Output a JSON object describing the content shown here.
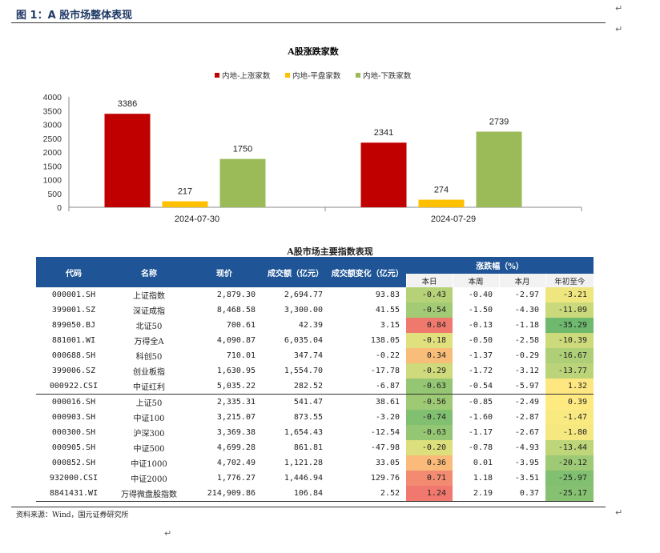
{
  "figure_title": "图 1：A 股市场整体表现",
  "return_mark": "↵",
  "colors": {
    "up": "#c00000",
    "flat": "#ffc000",
    "down": "#9bbb59",
    "header_bg": "#1f5596"
  },
  "chart_data": {
    "type": "bar",
    "title": "A股涨跌家数",
    "categories": [
      "2024-07-30",
      "2024-07-29"
    ],
    "series": [
      {
        "name": "内地-上涨家数",
        "values": [
          3386,
          2341
        ]
      },
      {
        "name": "内地-平盘家数",
        "values": [
          217,
          274
        ]
      },
      {
        "name": "内地-下跌家数",
        "values": [
          1750,
          2739
        ]
      }
    ],
    "ylim": [
      0,
      4000
    ],
    "yticks": [
      0,
      500,
      1000,
      1500,
      2000,
      2500,
      3000,
      3500,
      4000
    ],
    "legend_position": "top-center",
    "xlabel": "",
    "ylabel": ""
  },
  "table": {
    "title": "A股市场主要指数表现",
    "headers": {
      "code": "代码",
      "name": "名称",
      "price": "现价",
      "volume": "成交额（亿元）",
      "volume_change": "成交额变化（亿元）",
      "pct_group": "涨跌幅（%）",
      "pct_cols": [
        "本日",
        "本周",
        "本月",
        "年初至今"
      ]
    },
    "rows": [
      {
        "code": "000001.SH",
        "name": "上证指数",
        "price": "2,879.30",
        "volume": "2,694.77",
        "change": "93.83",
        "pct": [
          -0.43,
          -0.4,
          -2.97,
          -3.21
        ]
      },
      {
        "code": "399001.SZ",
        "name": "深证成指",
        "price": "8,468.58",
        "volume": "3,300.00",
        "change": "41.55",
        "pct": [
          -0.54,
          -1.5,
          -4.3,
          -11.09
        ]
      },
      {
        "code": "899050.BJ",
        "name": "北证50",
        "price": "700.61",
        "volume": "42.39",
        "change": "3.15",
        "pct": [
          0.84,
          -0.13,
          -1.18,
          -35.29
        ]
      },
      {
        "code": "881001.WI",
        "name": "万得全A",
        "price": "4,090.87",
        "volume": "6,035.04",
        "change": "138.05",
        "pct": [
          -0.18,
          -0.5,
          -2.58,
          -10.39
        ]
      },
      {
        "code": "000688.SH",
        "name": "科创50",
        "price": "710.01",
        "volume": "347.74",
        "change": "-0.22",
        "pct": [
          0.34,
          -1.37,
          -0.29,
          -16.67
        ]
      },
      {
        "code": "399006.SZ",
        "name": "创业板指",
        "price": "1,630.95",
        "volume": "1,554.70",
        "change": "-17.78",
        "pct": [
          -0.29,
          -1.72,
          -3.12,
          -13.77
        ]
      },
      {
        "code": "000922.CSI",
        "name": "中证红利",
        "price": "5,035.22",
        "volume": "282.52",
        "change": "-6.87",
        "pct": [
          -0.63,
          -0.54,
          -5.97,
          1.32
        ]
      },
      {
        "code": "000016.SH",
        "name": "上证50",
        "price": "2,335.31",
        "volume": "541.47",
        "change": "38.61",
        "pct": [
          -0.56,
          -0.85,
          -2.49,
          0.39
        ]
      },
      {
        "code": "000903.SH",
        "name": "中证100",
        "price": "3,215.07",
        "volume": "873.55",
        "change": "-3.20",
        "pct": [
          -0.74,
          -1.6,
          -2.87,
          -1.47
        ]
      },
      {
        "code": "000300.SH",
        "name": "沪深300",
        "price": "3,369.38",
        "volume": "1,654.43",
        "change": "-12.54",
        "pct": [
          -0.63,
          -1.17,
          -2.67,
          -1.8
        ]
      },
      {
        "code": "000905.SH",
        "name": "中证500",
        "price": "4,699.28",
        "volume": "861.81",
        "change": "-47.98",
        "pct": [
          -0.2,
          -0.78,
          -4.93,
          -13.44
        ]
      },
      {
        "code": "000852.SH",
        "name": "中证1000",
        "price": "4,702.49",
        "volume": "1,121.28",
        "change": "33.05",
        "pct": [
          0.36,
          0.01,
          -3.95,
          -20.12
        ]
      },
      {
        "code": "932000.CSI",
        "name": "中证2000",
        "price": "1,776.27",
        "volume": "1,446.94",
        "change": "129.76",
        "pct": [
          0.71,
          1.18,
          -3.51,
          -25.97
        ]
      },
      {
        "code": "8841431.WI",
        "name": "万得微盘股指数",
        "price": "214,909.86",
        "volume": "106.84",
        "change": "2.52",
        "pct": [
          1.24,
          2.19,
          0.37,
          -25.17
        ]
      }
    ]
  },
  "source": "资料来源：Wind，国元证券研究所"
}
